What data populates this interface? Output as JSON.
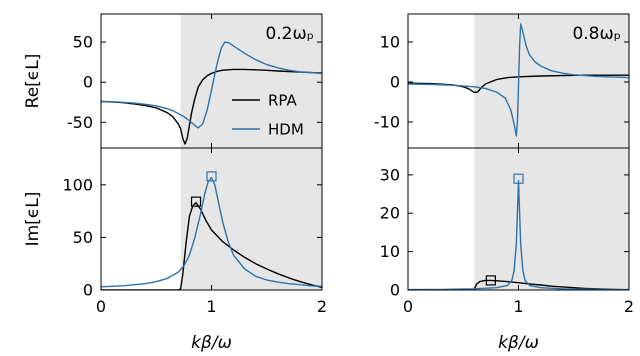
{
  "chart_data": [
    {
      "id": "re_left",
      "type": "line",
      "annotation": "0.2ωₚ",
      "ylabel": "Re[ϵL]",
      "xlabel": "",
      "xlim": [
        0,
        2
      ],
      "ylim": [
        -82,
        85
      ],
      "xticks": [
        0,
        1,
        2
      ],
      "yticks": [
        -50,
        0,
        50
      ],
      "yticklabels": [
        "-50",
        "0",
        "50"
      ],
      "shaded_from_x": 0.72,
      "legend": {
        "position": "center-right",
        "entries": [
          "RPA",
          "HDM"
        ]
      },
      "series": [
        {
          "name": "RPA",
          "color": "#000000",
          "x": [
            0,
            0.1,
            0.2,
            0.3,
            0.4,
            0.5,
            0.6,
            0.65,
            0.7,
            0.72,
            0.74,
            0.76,
            0.78,
            0.8,
            0.82,
            0.85,
            0.88,
            0.92,
            0.96,
            1.0,
            1.05,
            1.1,
            1.2,
            1.3,
            1.4,
            1.5,
            1.6,
            1.7,
            1.8,
            1.9,
            2.0
          ],
          "y": [
            -24,
            -24.5,
            -25.5,
            -27,
            -29,
            -32,
            -38,
            -43,
            -52,
            -58,
            -70,
            -77,
            -70,
            -54,
            -38,
            -20,
            -6,
            3,
            8,
            11,
            13.5,
            15,
            16,
            16,
            15.5,
            14.8,
            14,
            13.3,
            12.6,
            12,
            11.5
          ]
        },
        {
          "name": "HDM",
          "color": "#2f73ab",
          "x": [
            0,
            0.1,
            0.2,
            0.3,
            0.4,
            0.5,
            0.6,
            0.65,
            0.7,
            0.75,
            0.8,
            0.85,
            0.88,
            0.92,
            0.96,
            1.0,
            1.03,
            1.06,
            1.09,
            1.12,
            1.16,
            1.2,
            1.3,
            1.4,
            1.5,
            1.6,
            1.7,
            1.8,
            1.9,
            2.0
          ],
          "y": [
            -24,
            -24.3,
            -25,
            -26,
            -27.5,
            -29.5,
            -33,
            -35.5,
            -39,
            -43,
            -48,
            -54,
            -57,
            -52,
            -35,
            -10,
            10,
            28,
            43,
            50,
            49,
            45,
            36,
            28,
            22,
            18,
            15,
            13,
            12,
            11
          ]
        }
      ]
    },
    {
      "id": "re_right",
      "type": "line",
      "annotation": "0.8ωₚ",
      "ylabel": "",
      "xlabel": "",
      "xlim": [
        0,
        2
      ],
      "ylim": [
        -16.5,
        17
      ],
      "xticks": [
        0,
        1,
        2
      ],
      "yticks": [
        -10,
        0,
        10
      ],
      "yticklabels": [
        "-10",
        "0",
        "10"
      ],
      "shaded_from_x": 0.6,
      "series": [
        {
          "name": "RPA",
          "color": "#000000",
          "x": [
            0,
            0.2,
            0.4,
            0.5,
            0.55,
            0.6,
            0.63,
            0.66,
            0.7,
            0.8,
            0.9,
            1.0,
            1.2,
            1.4,
            1.6,
            1.8,
            2.0
          ],
          "y": [
            -0.3,
            -0.4,
            -0.7,
            -1.2,
            -1.7,
            -2.6,
            -2.5,
            -1.5,
            -0.5,
            0.6,
            1.1,
            1.3,
            1.5,
            1.6,
            1.7,
            1.7,
            1.7
          ]
        },
        {
          "name": "HDM",
          "color": "#2f73ab",
          "x": [
            0,
            0.2,
            0.4,
            0.6,
            0.7,
            0.8,
            0.88,
            0.93,
            0.96,
            0.98,
            0.99,
            1.0,
            1.01,
            1.02,
            1.04,
            1.07,
            1.1,
            1.15,
            1.2,
            1.3,
            1.4,
            1.5,
            1.6,
            1.7,
            1.8,
            1.9,
            2.0
          ],
          "y": [
            -0.5,
            -0.6,
            -0.8,
            -1.2,
            -1.6,
            -2.5,
            -4,
            -7,
            -10.5,
            -13.5,
            -10,
            -1,
            9,
            14.5,
            12.5,
            9,
            6.8,
            5,
            4,
            2.8,
            2.2,
            1.8,
            1.6,
            1.4,
            1.3,
            1.2,
            1.1
          ]
        }
      ]
    },
    {
      "id": "im_left",
      "type": "line",
      "annotation": "",
      "ylabel": "Im[ϵL]",
      "xlabel": "kβ/ω",
      "xlim": [
        0,
        2
      ],
      "ylim": [
        0,
        135
      ],
      "xticks": [
        0,
        1,
        2
      ],
      "xticklabels": [
        "0",
        "1",
        "2"
      ],
      "yticks": [
        0,
        50,
        100
      ],
      "yticklabels": [
        "0",
        "50",
        "100"
      ],
      "shaded_from_x": 0.72,
      "markers": [
        {
          "series": "RPA",
          "x": 0.86,
          "y": 84,
          "shape": "square"
        },
        {
          "series": "HDM",
          "x": 1.0,
          "y": 108,
          "shape": "square"
        }
      ],
      "series": [
        {
          "name": "RPA",
          "color": "#000000",
          "x": [
            0,
            0.3,
            0.6,
            0.7,
            0.72,
            0.74,
            0.77,
            0.8,
            0.83,
            0.86,
            0.9,
            0.95,
            1.0,
            1.1,
            1.2,
            1.3,
            1.4,
            1.5,
            1.6,
            1.7,
            1.8,
            1.9,
            2.0
          ],
          "y": [
            0,
            0,
            0,
            0,
            1,
            15,
            45,
            70,
            80,
            83,
            77,
            66,
            57,
            46,
            38,
            31,
            25,
            20,
            15.5,
            11.5,
            8,
            5,
            2.5
          ]
        },
        {
          "name": "HDM",
          "color": "#2f73ab",
          "x": [
            0,
            0.2,
            0.4,
            0.5,
            0.6,
            0.7,
            0.75,
            0.8,
            0.85,
            0.9,
            0.94,
            0.97,
            1.0,
            1.03,
            1.06,
            1.1,
            1.15,
            1.2,
            1.3,
            1.4,
            1.5,
            1.6,
            1.7,
            1.8,
            1.9,
            2.0
          ],
          "y": [
            3,
            4,
            6,
            8,
            11,
            17,
            23,
            33,
            50,
            72,
            92,
            103,
            107,
            100,
            85,
            65,
            46,
            33,
            20,
            13,
            9.5,
            7.5,
            6,
            5,
            4,
            3.5
          ]
        }
      ]
    },
    {
      "id": "im_right",
      "type": "line",
      "annotation": "",
      "ylabel": "",
      "xlabel": "kβ/ω",
      "xlim": [
        0,
        2
      ],
      "ylim": [
        0,
        37
      ],
      "xticks": [
        0,
        1,
        2
      ],
      "xticklabels": [
        "0",
        "1",
        "2"
      ],
      "yticks": [
        0,
        10,
        20,
        30
      ],
      "yticklabels": [
        "0",
        "10",
        "20",
        "30"
      ],
      "shaded_from_x": 0.6,
      "markers": [
        {
          "series": "RPA",
          "x": 0.75,
          "y": 2.5,
          "shape": "square"
        },
        {
          "series": "HDM",
          "x": 1.0,
          "y": 29,
          "shape": "square"
        }
      ],
      "series": [
        {
          "name": "RPA",
          "color": "#000000",
          "x": [
            0,
            0.4,
            0.58,
            0.6,
            0.62,
            0.65,
            0.7,
            0.75,
            0.8,
            0.9,
            1.0,
            1.1,
            1.2,
            1.3,
            1.4,
            1.5,
            1.6,
            1.7,
            1.8,
            1.9,
            2.0
          ],
          "y": [
            0,
            0,
            0,
            0.2,
            1.5,
            2.2,
            2.5,
            2.5,
            2.4,
            2.2,
            1.9,
            1.6,
            1.3,
            1.0,
            0.8,
            0.6,
            0.4,
            0.3,
            0.2,
            0.1,
            0.05
          ]
        },
        {
          "name": "HDM",
          "color": "#2f73ab",
          "x": [
            0,
            0.3,
            0.6,
            0.8,
            0.9,
            0.94,
            0.96,
            0.98,
            0.99,
            1.0,
            1.01,
            1.02,
            1.04,
            1.06,
            1.1,
            1.2,
            1.4,
            1.6,
            1.8,
            2.0
          ],
          "y": [
            0.1,
            0.15,
            0.3,
            0.6,
            1.2,
            2.5,
            5,
            12,
            20,
            28.5,
            20,
            12,
            5,
            2.5,
            1.2,
            0.6,
            0.3,
            0.2,
            0.12,
            0.1
          ]
        }
      ]
    }
  ]
}
